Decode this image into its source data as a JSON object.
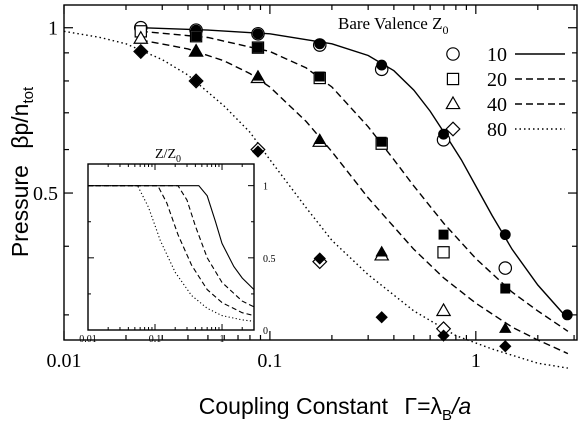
{
  "chart_data": [
    {
      "type": "scatter",
      "xlabel": "Coupling Constant",
      "xlabel_symbol": "Γ=λ",
      "xlabel_sub": "B",
      "xlabel_tail": "/a",
      "ylabel": "Pressure",
      "ylabel_symbol": "βp/n",
      "ylabel_sub": "tot",
      "x_scale": "log",
      "y_scale": "log",
      "xlim": [
        0.01,
        3.1
      ],
      "ylim": [
        0.27,
        1.1
      ],
      "x_ticks": [
        {
          "v": 0.01,
          "label": "0.01"
        },
        {
          "v": 0.1,
          "label": "0.1"
        },
        {
          "v": 1,
          "label": "1"
        }
      ],
      "y_ticks": [
        {
          "v": 0.5,
          "label": "0.5"
        },
        {
          "v": 1,
          "label": "1"
        }
      ],
      "grid": false,
      "legend": {
        "title": "Bare Valence Z",
        "title_sub": "0",
        "placement": "top-right",
        "entries": [
          {
            "label": "10",
            "marker": "circle",
            "line": "solid"
          },
          {
            "label": "20",
            "marker": "square",
            "line": "dashed"
          },
          {
            "label": "40",
            "marker": "triangle",
            "line": "dashed"
          },
          {
            "label": "80",
            "marker": "diamond",
            "line": "dotted"
          }
        ]
      },
      "series": [
        {
          "label": "10",
          "marker": "circle",
          "line": "solid",
          "open_x": [
            0.0236,
            0.0438,
            0.0875,
            0.1746,
            0.349,
            0.697,
            1.39
          ],
          "open_y": [
            1.0,
            0.99,
            0.975,
            0.93,
            0.84,
            0.625,
            0.365
          ],
          "filled_x": [
            0.0438,
            0.0875,
            0.1746,
            0.349,
            0.697,
            1.39,
            2.78
          ],
          "filled_y": [
            0.99,
            0.975,
            0.935,
            0.855,
            0.64,
            0.42,
            0.3
          ],
          "curve_x": [
            0.0236,
            0.05,
            0.1,
            0.2,
            0.3,
            0.4,
            0.5,
            0.6,
            0.7,
            0.85,
            1.0,
            1.2,
            1.5,
            2.0,
            2.8
          ],
          "curve_y": [
            1.0,
            0.99,
            0.975,
            0.935,
            0.89,
            0.835,
            0.77,
            0.705,
            0.645,
            0.575,
            0.515,
            0.455,
            0.395,
            0.34,
            0.295
          ]
        },
        {
          "label": "20",
          "marker": "square",
          "line": "dashed",
          "open_x": [
            0.0236,
            0.0438,
            0.0875,
            0.1746,
            0.349,
            0.697
          ],
          "open_y": [
            0.985,
            0.965,
            0.92,
            0.81,
            0.615,
            0.39
          ],
          "filled_x": [
            0.0438,
            0.0875,
            0.1746,
            0.349,
            0.697,
            1.39
          ],
          "filled_y": [
            0.965,
            0.92,
            0.815,
            0.62,
            0.42,
            0.335
          ],
          "curve_x": [
            0.0236,
            0.05,
            0.1,
            0.15,
            0.2,
            0.3,
            0.4,
            0.5,
            0.7,
            1.0,
            1.5,
            2.0,
            2.8
          ],
          "curve_y": [
            0.985,
            0.96,
            0.905,
            0.845,
            0.78,
            0.66,
            0.575,
            0.515,
            0.44,
            0.38,
            0.33,
            0.305,
            0.28
          ]
        },
        {
          "label": "40",
          "marker": "triangle",
          "line": "dashed",
          "open_x": [
            0.0236,
            0.0438,
            0.0875,
            0.1746,
            0.349,
            0.697
          ],
          "open_y": [
            0.955,
            0.905,
            0.81,
            0.62,
            0.385,
            0.305
          ],
          "filled_x": [
            0.0438,
            0.0875,
            0.1746,
            0.349,
            1.39
          ],
          "filled_y": [
            0.905,
            0.815,
            0.625,
            0.39,
            0.283
          ],
          "curve_x": [
            0.0236,
            0.04,
            0.06,
            0.08,
            0.1,
            0.15,
            0.2,
            0.3,
            0.5,
            0.7,
            1.0,
            1.5,
            2.0,
            2.8
          ],
          "curve_y": [
            0.95,
            0.915,
            0.87,
            0.825,
            0.78,
            0.675,
            0.595,
            0.49,
            0.395,
            0.35,
            0.315,
            0.285,
            0.27,
            0.255
          ]
        },
        {
          "label": "80",
          "marker": "diamond",
          "line": "dotted",
          "open_x": [
            0.0236,
            0.0438,
            0.0875,
            0.1746,
            0.697
          ],
          "open_y": [
            0.905,
            0.8,
            0.6,
            0.375,
            0.283
          ],
          "filled_x": [
            0.0236,
            0.0438,
            0.0875,
            0.1746,
            0.349,
            0.697,
            1.39
          ],
          "filled_y": [
            0.905,
            0.8,
            0.595,
            0.38,
            0.297,
            0.275,
            0.263
          ],
          "curve_x": [
            0.01,
            0.015,
            0.02,
            0.03,
            0.04,
            0.06,
            0.08,
            0.1,
            0.15,
            0.2,
            0.3,
            0.5,
            0.8,
            1.2,
            2.0,
            2.8
          ],
          "curve_y": [
            0.985,
            0.96,
            0.935,
            0.875,
            0.82,
            0.72,
            0.645,
            0.575,
            0.47,
            0.41,
            0.355,
            0.305,
            0.275,
            0.26,
            0.245,
            0.24
          ]
        }
      ]
    },
    {
      "type": "line",
      "title": "Z/Z",
      "title_sub": "0",
      "placement": "inset-lower-left",
      "x_scale": "log",
      "xlim": [
        0.01,
        3.0
      ],
      "ylim": [
        0,
        1.15
      ],
      "x_ticks": [
        {
          "v": 0.01,
          "label": "0.01"
        },
        {
          "v": 0.1,
          "label": "0.1"
        },
        {
          "v": 1,
          "label": "1"
        }
      ],
      "y_ticks": [
        {
          "v": 0,
          "label": "0"
        },
        {
          "v": 0.5,
          "label": "0.5"
        },
        {
          "v": 1,
          "label": "1"
        }
      ],
      "series": [
        {
          "label": "10",
          "line": "solid",
          "x": [
            0.01,
            0.45,
            0.6,
            0.8,
            1.0,
            1.5,
            2.0,
            3.0
          ],
          "y": [
            1.0,
            1.0,
            0.93,
            0.75,
            0.6,
            0.44,
            0.36,
            0.28
          ]
        },
        {
          "label": "20",
          "line": "dashed",
          "x": [
            0.01,
            0.22,
            0.3,
            0.4,
            0.6,
            1.0,
            2.0,
            3.0
          ],
          "y": [
            1.0,
            1.0,
            0.9,
            0.72,
            0.5,
            0.33,
            0.2,
            0.16
          ]
        },
        {
          "label": "40",
          "line": "dashed",
          "x": [
            0.01,
            0.11,
            0.15,
            0.22,
            0.35,
            0.6,
            1.0,
            2.0,
            3.0
          ],
          "y": [
            1.0,
            1.0,
            0.88,
            0.66,
            0.45,
            0.28,
            0.19,
            0.12,
            0.1
          ]
        },
        {
          "label": "80",
          "line": "dotted",
          "x": [
            0.01,
            0.055,
            0.08,
            0.12,
            0.2,
            0.35,
            0.6,
            1.0,
            2.0,
            3.0
          ],
          "y": [
            1.0,
            1.0,
            0.85,
            0.62,
            0.4,
            0.24,
            0.15,
            0.1,
            0.07,
            0.06
          ]
        }
      ]
    }
  ]
}
